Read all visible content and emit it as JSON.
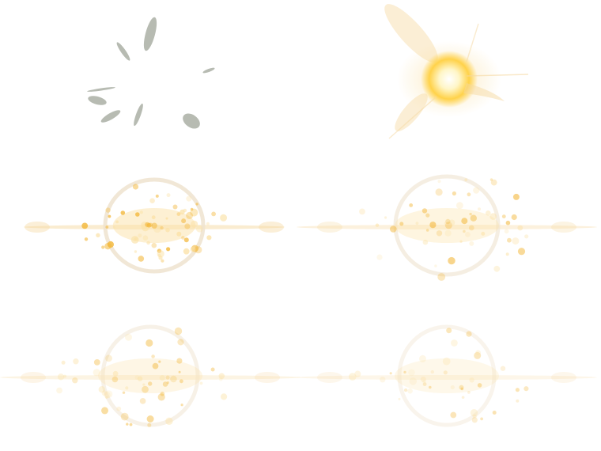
{
  "sprite_sheet": {
    "frames": [
      {
        "name": "frame-1",
        "stage": "shards"
      },
      {
        "name": "frame-2",
        "stage": "core-burst"
      },
      {
        "name": "frame-3",
        "stage": "ring-sparks-dense"
      },
      {
        "name": "frame-4",
        "stage": "ring-sparks-spread"
      },
      {
        "name": "frame-5",
        "stage": "ring-sparks-fading"
      },
      {
        "name": "frame-6",
        "stage": "ring-sparks-faint"
      }
    ],
    "colors": {
      "background": "#ffffff",
      "core": "#fff6c8",
      "core_glow": "#ffd24a",
      "spark": "#f3b83c",
      "spark_light": "#fbe2a8",
      "ring": "#efe3cf",
      "shard": "#7d8574",
      "streak": "#f6d9a2"
    }
  }
}
